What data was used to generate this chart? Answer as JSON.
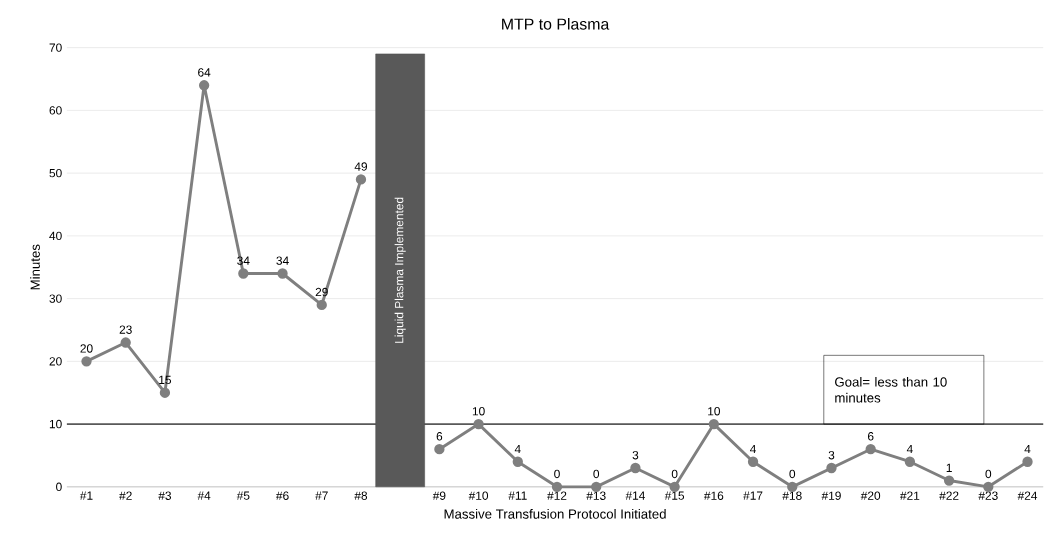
{
  "chart_data": {
    "type": "line",
    "title": "MTP to Plasma",
    "xlabel": "Massive Transfusion Protocol Initiated",
    "ylabel": "Minutes",
    "categories": [
      "#1",
      "#2",
      "#3",
      "#4",
      "#5",
      "#6",
      "#7",
      "#8",
      null,
      "#9",
      "#10",
      "#11",
      "#12",
      "#13",
      "#14",
      "#15",
      "#16",
      "#17",
      "#18",
      "#19",
      "#20",
      "#21",
      "#22",
      "#23",
      "#24"
    ],
    "series": [
      {
        "color": "#7f7f7f",
        "values": [
          20,
          23,
          15,
          64,
          34,
          34,
          29,
          49,
          null,
          6,
          10,
          4,
          0,
          0,
          3,
          0,
          10,
          4,
          0,
          3,
          6,
          4,
          1,
          0,
          4
        ],
        "value_labels": [
          "20",
          "23",
          "15",
          "64",
          "34",
          "34",
          "29",
          "49",
          null,
          "6",
          "10",
          "4",
          "0",
          "0",
          "3",
          "0",
          "10",
          "4",
          "0",
          "3",
          "6",
          "4",
          "1",
          "0",
          "4"
        ]
      },
      {
        "type": "bar",
        "name": "Liquid Plasma Implemented",
        "color": "#595959",
        "values": [
          null,
          null,
          null,
          null,
          null,
          null,
          null,
          null,
          69,
          null,
          null,
          null,
          null,
          null,
          null,
          null,
          null,
          null,
          null,
          null,
          null,
          null,
          null,
          null,
          null
        ]
      }
    ],
    "marker": "circle",
    "grid": "y",
    "ylim": [
      0,
      70
    ],
    "yticks": [
      0,
      10,
      20,
      30,
      40,
      50,
      60,
      70
    ],
    "ref_lines": [
      {
        "axis": "y",
        "value": 10,
        "color": "#595959"
      }
    ],
    "annotations": [
      "Goal= less than 10 minutes"
    ]
  }
}
